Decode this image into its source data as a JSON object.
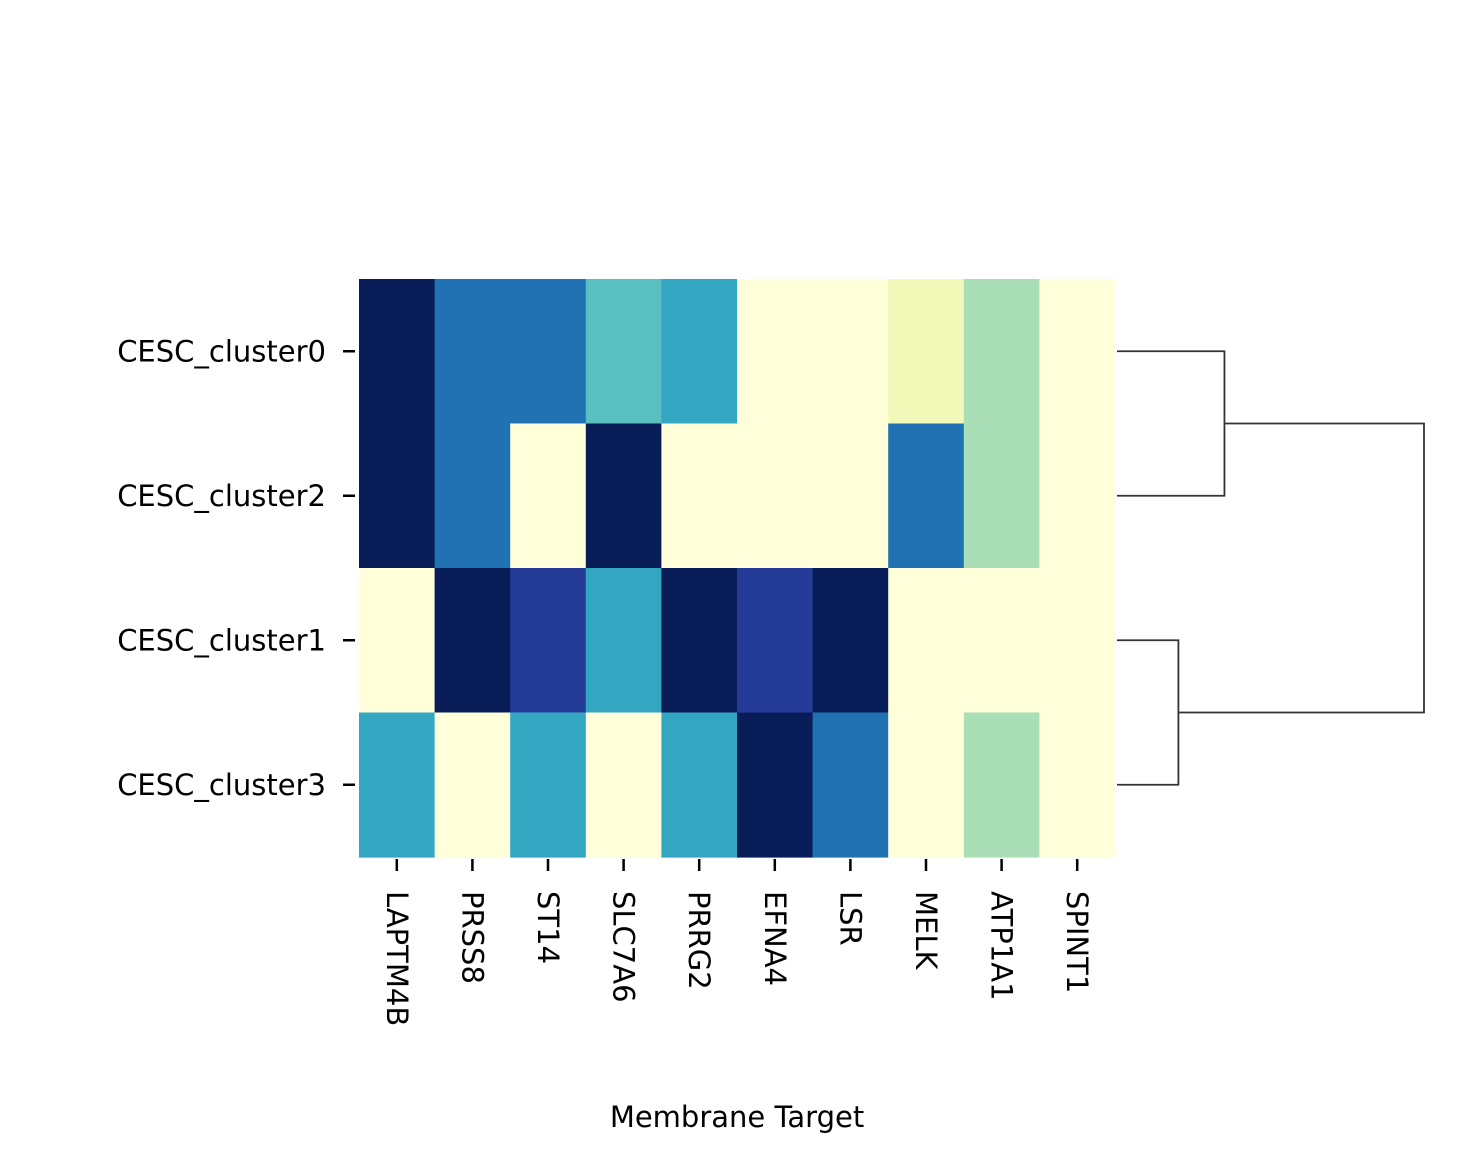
{
  "chart_data": {
    "type": "heatmap",
    "xlabel": "Membrane Target",
    "ylabel": "",
    "columns": [
      "LAPTM4B",
      "PRSS8",
      "ST14",
      "SLC7A6",
      "PRRG2",
      "EFNA4",
      "LSR",
      "MELK",
      "ATP1A1",
      "SPINT1"
    ],
    "rows": [
      "CESC_cluster0",
      "CESC_cluster2",
      "CESC_cluster1",
      "CESC_cluster3"
    ],
    "values": [
      [
        1.0,
        0.7,
        0.7,
        0.45,
        0.55,
        0.0,
        0.0,
        0.1,
        0.3,
        0.0
      ],
      [
        1.0,
        0.7,
        0.0,
        1.0,
        0.0,
        0.0,
        0.0,
        0.7,
        0.3,
        0.0
      ],
      [
        0.0,
        1.0,
        0.85,
        0.55,
        1.0,
        0.85,
        1.0,
        0.0,
        0.0,
        0.0
      ],
      [
        0.55,
        0.0,
        0.55,
        0.0,
        0.55,
        1.0,
        0.7,
        0.0,
        0.3,
        0.0
      ]
    ],
    "colormap": "YlGnBu",
    "colorbar": false,
    "row_dendrogram": {
      "side": "right",
      "merges": [
        {
          "left": "CESC_cluster0",
          "right": "CESC_cluster2",
          "height": 0.35
        },
        {
          "left": "CESC_cluster1",
          "right": "CESC_cluster3",
          "height": 0.2
        },
        {
          "left": "cluster0-cluster2",
          "right": "cluster1-cluster3",
          "height": 1.0
        }
      ]
    }
  }
}
